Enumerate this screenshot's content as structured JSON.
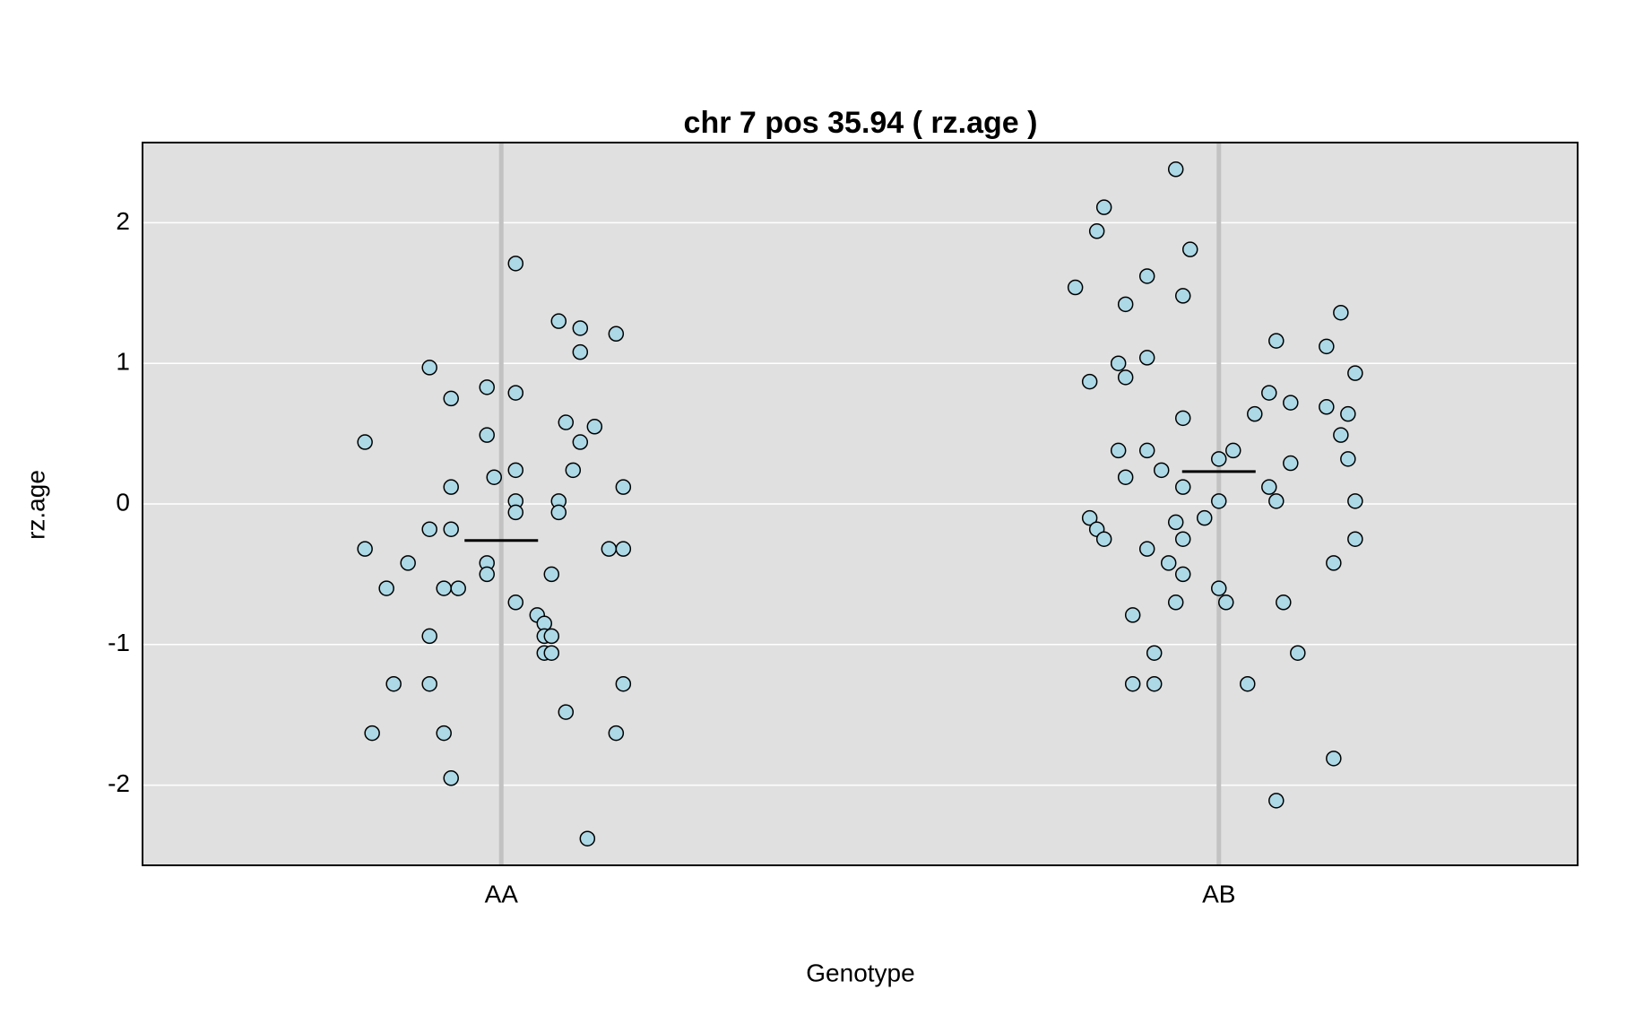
{
  "chart_data": {
    "type": "scatter",
    "title": "chr 7 pos 35.94 ( rz.age )",
    "xlabel": "Genotype",
    "ylabel": "rz.age",
    "x": [
      0.81,
      0.81,
      0.84,
      0.82,
      0.85,
      0.87,
      0.9,
      0.9,
      0.9,
      0.9,
      0.92,
      0.92,
      0.93,
      0.93,
      0.93,
      0.93,
      0.94,
      0.98,
      0.98,
      0.98,
      0.98,
      0.99,
      1.02,
      1.02,
      1.02,
      1.02,
      1.02,
      1.02,
      1.05,
      1.06,
      1.06,
      1.07,
      1.06,
      1.07,
      1.07,
      1.08,
      1.08,
      1.08,
      1.09,
      1.09,
      1.1,
      1.11,
      1.11,
      1.11,
      1.12,
      1.13,
      1.15,
      1.16,
      1.16,
      1.17,
      1.17,
      1.17,
      1.8,
      1.82,
      1.82,
      1.83,
      1.84,
      1.83,
      1.84,
      1.86,
      1.86,
      1.87,
      1.87,
      1.87,
      1.88,
      1.88,
      1.9,
      1.9,
      1.9,
      1.9,
      1.91,
      1.91,
      1.92,
      1.93,
      1.94,
      1.94,
      1.94,
      1.95,
      1.95,
      1.95,
      1.95,
      1.95,
      1.96,
      1.98,
      2.0,
      2.0,
      2.0,
      2.01,
      2.02,
      2.04,
      2.05,
      2.07,
      2.08,
      2.07,
      2.08,
      2.08,
      2.09,
      2.1,
      2.1,
      2.11,
      2.15,
      2.15,
      2.16,
      2.16,
      2.17,
      2.17,
      2.18,
      2.18,
      2.19,
      2.19,
      2.19
    ],
    "values": [
      0.44,
      -0.32,
      -0.6,
      -1.63,
      -1.28,
      -0.42,
      0.97,
      -0.94,
      -1.28,
      -0.18,
      -0.6,
      -1.63,
      0.75,
      0.12,
      -0.18,
      -1.95,
      -0.6,
      0.83,
      0.49,
      -0.42,
      -0.5,
      0.19,
      1.71,
      0.24,
      0.02,
      -0.06,
      0.79,
      -0.7,
      -0.79,
      -0.85,
      -0.94,
      -0.94,
      -1.06,
      -1.06,
      -0.5,
      1.3,
      0.02,
      -0.06,
      0.58,
      -1.48,
      0.24,
      1.08,
      0.44,
      1.25,
      -2.38,
      0.55,
      -0.32,
      1.21,
      -1.63,
      -1.28,
      0.12,
      -0.32,
      1.54,
      0.87,
      -0.1,
      -0.18,
      -0.25,
      1.94,
      2.11,
      1.0,
      0.38,
      0.9,
      1.42,
      0.19,
      -0.79,
      -1.28,
      -0.32,
      0.38,
      1.62,
      1.04,
      -1.06,
      -1.28,
      0.24,
      -0.42,
      2.38,
      -0.13,
      -0.7,
      -0.5,
      1.48,
      -0.25,
      0.12,
      0.61,
      1.81,
      -0.1,
      0.02,
      -0.6,
      0.32,
      -0.7,
      0.38,
      -1.28,
      0.64,
      0.12,
      1.16,
      0.79,
      -2.11,
      0.02,
      -0.7,
      0.29,
      0.72,
      -1.06,
      1.12,
      0.69,
      -1.81,
      -0.42,
      1.36,
      0.49,
      0.64,
      0.32,
      0.02,
      -0.25,
      0.93
    ],
    "means": [
      -0.26,
      0.23
    ],
    "color": "#add8e6",
    "xlim": [
      0.5,
      2.5
    ],
    "ylim": [
      -2.57,
      2.57
    ],
    "xticks": [
      {
        "value": 1,
        "label": "AA"
      },
      {
        "value": 2,
        "label": "AB"
      }
    ],
    "yticks": [
      -2,
      -1,
      0,
      1,
      2
    ],
    "grid": true
  }
}
